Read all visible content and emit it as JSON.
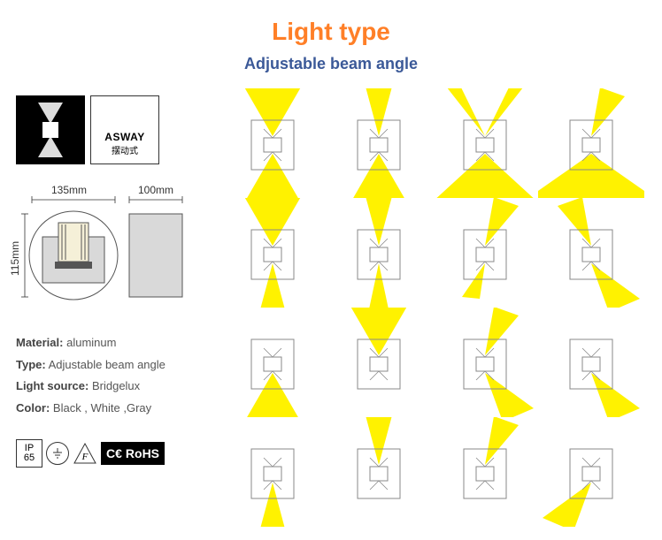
{
  "title": {
    "text": "Light  type",
    "color": "#ff7f27"
  },
  "subtitle": {
    "text": "Adjustable beam angle",
    "color": "#3b5998"
  },
  "asway": {
    "line1": "ASWAY",
    "line2": "摆动式"
  },
  "dimensions": {
    "width": "135mm",
    "depth": "100mm",
    "height": "115mm"
  },
  "specs": {
    "material_label": "Material:",
    "material_value": "aluminum",
    "type_label": "Type:",
    "type_value": "Adjustable beam angle",
    "source_label": "Light source:",
    "source_value": "Bridgelux",
    "color_label": "Color:",
    "color_value": "Black , White ,Gray"
  },
  "cert": {
    "ip": "IP\n65",
    "ce": "C€",
    "rohs": "RoHS"
  },
  "beam_color": "#fff200",
  "outline_color": "#888888",
  "beams": [
    {
      "top": {
        "shape": "tri_down",
        "angle": 60
      },
      "bottom": {
        "shape": "tri_up",
        "angle": 60
      }
    },
    {
      "top": {
        "shape": "tri_down",
        "angle": 30
      },
      "bottom": {
        "shape": "tri_up",
        "angle": 60
      }
    },
    {
      "top": {
        "shape": "v_split",
        "angle": 80
      },
      "bottom": {
        "shape": "tri_up",
        "angle": 95,
        "wide": true
      }
    },
    {
      "top": {
        "shape": "skew_right",
        "angle": 40
      },
      "bottom": {
        "shape": "tri_up",
        "angle": 110,
        "wide": true
      }
    },
    {
      "top": {
        "shape": "tri_down",
        "angle": 60
      },
      "bottom": {
        "shape": "tri_up",
        "angle": 30
      }
    },
    {
      "top": {
        "shape": "tri_down",
        "angle": 30
      },
      "bottom": {
        "shape": "tri_up",
        "angle": 24
      }
    },
    {
      "top": {
        "shape": "skew_right",
        "angle": 35
      },
      "bottom": {
        "shape": "skew_left_small"
      }
    },
    {
      "top": {
        "shape": "skew_left",
        "angle": 40
      },
      "bottom": {
        "shape": "skew_right_down",
        "angle": 60
      }
    },
    {
      "top": {
        "shape": "none"
      },
      "bottom": {
        "shape": "tri_up",
        "angle": 60
      }
    },
    {
      "top": {
        "shape": "tri_down",
        "angle": 60
      },
      "bottom": {
        "shape": "none"
      }
    },
    {
      "top": {
        "shape": "skew_right",
        "angle": 35
      },
      "bottom": {
        "shape": "skew_right_down",
        "angle": 50
      }
    },
    {
      "top": {
        "shape": "none"
      },
      "bottom": {
        "shape": "skew_right_down",
        "angle": 55
      }
    },
    {
      "top": {
        "shape": "none"
      },
      "bottom": {
        "shape": "tri_up",
        "angle": 30
      }
    },
    {
      "top": {
        "shape": "tri_down",
        "angle": 30
      },
      "bottom": {
        "shape": "none"
      }
    },
    {
      "top": {
        "shape": "skew_right",
        "angle": 35
      },
      "bottom": {
        "shape": "none"
      }
    },
    {
      "top": {
        "shape": "none"
      },
      "bottom": {
        "shape": "skew_left_down",
        "angle": 55
      }
    }
  ]
}
